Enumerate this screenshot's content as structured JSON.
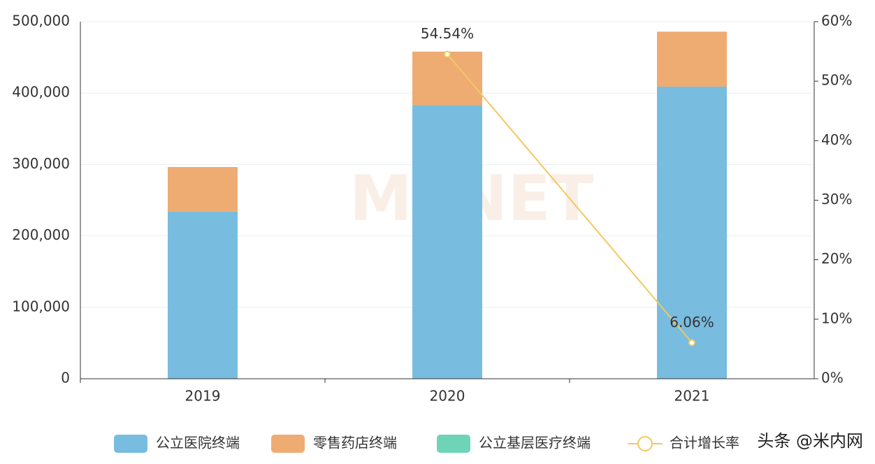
{
  "chart_data": {
    "type": "bar",
    "stacked": true,
    "categories": [
      "2019",
      "2020",
      "2021"
    ],
    "series": [
      {
        "name": "公立医院终端",
        "color": "#78bcdf",
        "values": [
          234000,
          383000,
          409000
        ]
      },
      {
        "name": "零售药店终端",
        "color": "#eeac73",
        "values": [
          62500,
          75000,
          77000
        ]
      },
      {
        "name": "公立基层医疗终端",
        "color": "#6fd3b7",
        "values": [
          null,
          null,
          null
        ]
      },
      {
        "name": "合计增长率",
        "color": "#f2c862",
        "type": "line",
        "axis": "y2",
        "values": [
          null,
          54.54,
          6.06
        ],
        "value_labels": [
          null,
          "54.54%",
          "6.06%"
        ]
      }
    ],
    "ylim": [
      0,
      500000
    ],
    "yticks": [
      0,
      {
        "value": 100000,
        "label": "100,000"
      },
      {
        "value": 200000,
        "label": "200,000"
      },
      {
        "value": 300000,
        "label": "300,000"
      },
      {
        "value": 400000,
        "label": "400,000"
      },
      {
        "value": 500000,
        "label": "500,000"
      }
    ],
    "y2lim": [
      0,
      60
    ],
    "y2ticks": [
      {
        "value": 0,
        "label": "0%"
      },
      {
        "value": 10,
        "label": "10%"
      },
      {
        "value": 20,
        "label": "20%"
      },
      {
        "value": 30,
        "label": "30%"
      },
      {
        "value": 40,
        "label": "40%"
      },
      {
        "value": 50,
        "label": "50%"
      },
      {
        "value": 60,
        "label": "60%"
      }
    ],
    "grid": true,
    "watermark": "MENET",
    "source_mark": "头条 @米内网"
  }
}
